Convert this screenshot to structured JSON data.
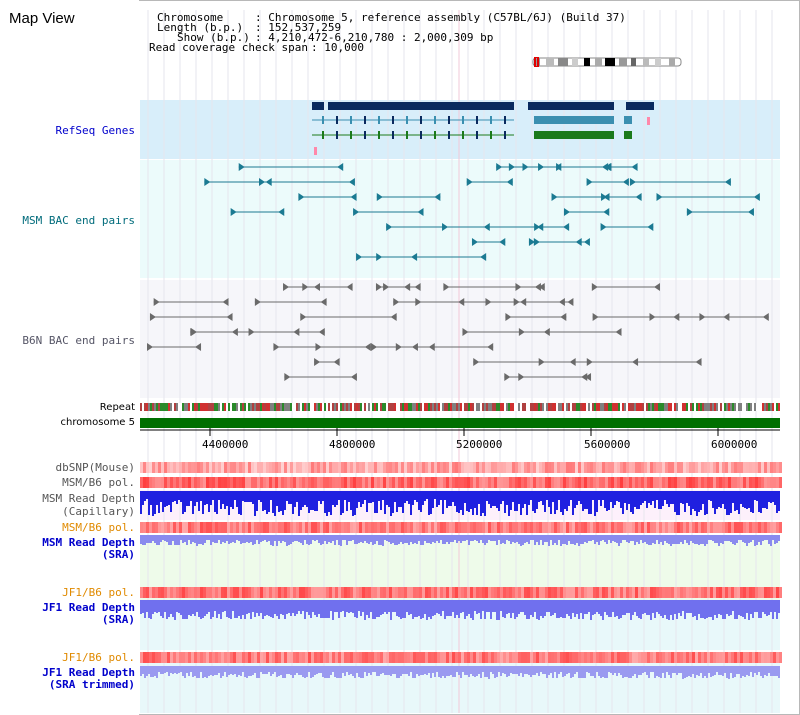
{
  "panel_title": "Map View",
  "info": {
    "chromosome_key": "Chromosome",
    "chromosome_val": ": Chromosome 5, reference assembly (C57BL/6J) (Build 37)",
    "length_key": "Length (b.p.)",
    "length_val": ": 152,537,259",
    "show_key": "Show (b.p.)",
    "show_val": ": 4,210,472-6,210,780 : 2,000,309 bp",
    "span_key": "Read coverage check span",
    "span_val": ": 10,000"
  },
  "tracks": {
    "refseq": "RefSeq Genes",
    "msm_bac": "MSM BAC end pairs",
    "b6n_bac": "B6N BAC end pairs",
    "repeat": "Repeat",
    "chromosome": "chromosome 5",
    "dbsnp": "dbSNP(Mouse)",
    "msm_b6_pol_1": "MSM/B6 pol.",
    "msm_read_depth_cap_1": "MSM Read Depth",
    "msm_read_depth_cap_2": "(Capillary)",
    "msm_b6_pol_2": "MSM/B6 pol.",
    "msm_read_depth_sra_1": "MSM Read Depth",
    "msm_read_depth_sra_2": "(SRA)",
    "jf1_b6_pol_1": "JF1/B6 pol.",
    "jf1_read_depth_sra_1": "JF1 Read Depth",
    "jf1_read_depth_sra_2": "(SRA)",
    "jf1_b6_pol_2": "JF1/B6 pol.",
    "jf1_read_depth_trim_1": "JF1 Read Depth",
    "jf1_read_depth_trim_2": "(SRA trimmed)"
  },
  "axis_ticks": [
    "4400000",
    "4800000",
    "5200000",
    "5600000",
    "6000000"
  ],
  "colors": {
    "refseq_bg": "#d8eefa",
    "msm_bac_bg": "#ecfbfb",
    "b6n_bac_bg": "#f6f6fa",
    "depth_bg": "#eafaf6",
    "refseq_label": "#0000cc",
    "msm_label": "#006b7b",
    "b6n_label": "#555566",
    "pol_label": "#e08a00",
    "depth_label": "#0000cc",
    "chromosome_green": "#006f00"
  }
}
